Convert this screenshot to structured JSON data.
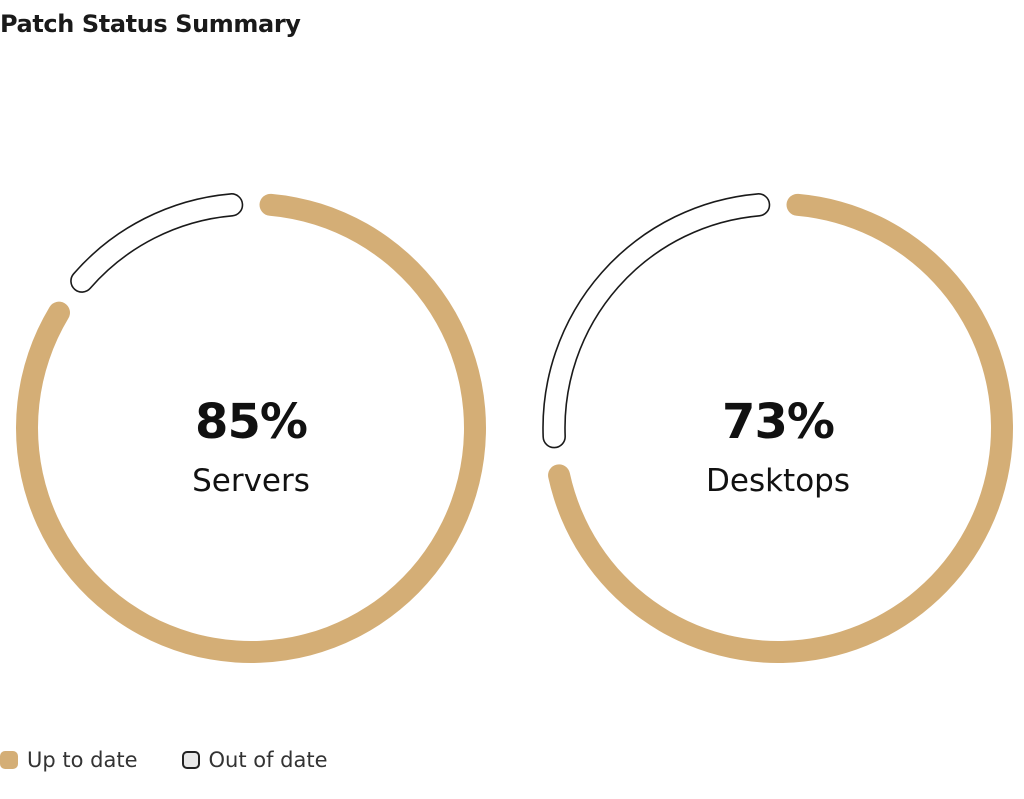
{
  "chart_data": {
    "type": "donut",
    "title": "Patch Status Summary",
    "colors": {
      "up_to_date": "#d4ae76",
      "out_of_date_fill": "#ffffff",
      "out_of_date_stroke": "#1a1a1a"
    },
    "charts": [
      {
        "label": "Servers",
        "value_label": "85%",
        "up_to_date": 85,
        "out_of_date": 15
      },
      {
        "label": "Desktops",
        "value_label": "73%",
        "up_to_date": 73,
        "out_of_date": 27
      }
    ],
    "legend": {
      "position": "bottom-left",
      "items": [
        {
          "label": "Up to date",
          "style": "filled"
        },
        {
          "label": "Out of date",
          "style": "outline"
        }
      ]
    }
  }
}
